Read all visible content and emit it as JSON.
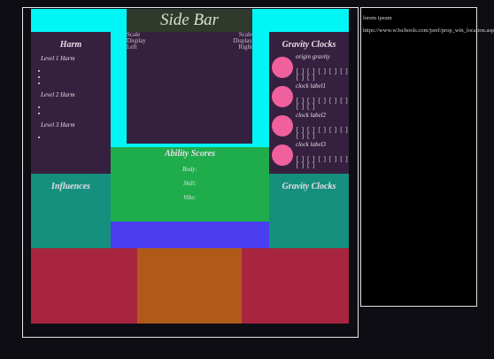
{
  "header": {
    "title": "Side Bar"
  },
  "scale": {
    "left": "Scale Display Left",
    "right": "Scale Display Right"
  },
  "harm": {
    "title": "Harm",
    "levels": [
      {
        "label": "Level 1 Harm",
        "count": 3
      },
      {
        "label": "Level 2 Harm",
        "count": 2
      },
      {
        "label": "Level 3 Harm",
        "count": 1
      }
    ]
  },
  "gravity_clocks": {
    "title": "Gravity Clocks",
    "clocks": [
      {
        "label": "origin gravity",
        "boxes": "[ ] [ ] [ ] [ ] [ ] [ ] [ ]"
      },
      {
        "label": "clock label1",
        "boxes": "[ ] [ ] [ ] [ ] [ ] [ ] [ ]"
      },
      {
        "label": "clock label2",
        "boxes": "[ ] [ ] [ ] [ ] [ ] [ ] [ ]"
      },
      {
        "label": "clock label3",
        "boxes": "[ ] [ ] [ ] [ ] [ ] [ ] [ ]"
      }
    ]
  },
  "ability_scores": {
    "title": "Ability Scores",
    "items": [
      "Body:",
      "Skill:",
      "Vibe:"
    ]
  },
  "influences": {
    "title": "Influences"
  },
  "gravity_clocks_lower": {
    "title": "Gravity Clocks"
  },
  "side_panel": {
    "text": "lorem ipsum",
    "url": "https://www.w3schools.com/jsref/prop_win_location.asp"
  }
}
